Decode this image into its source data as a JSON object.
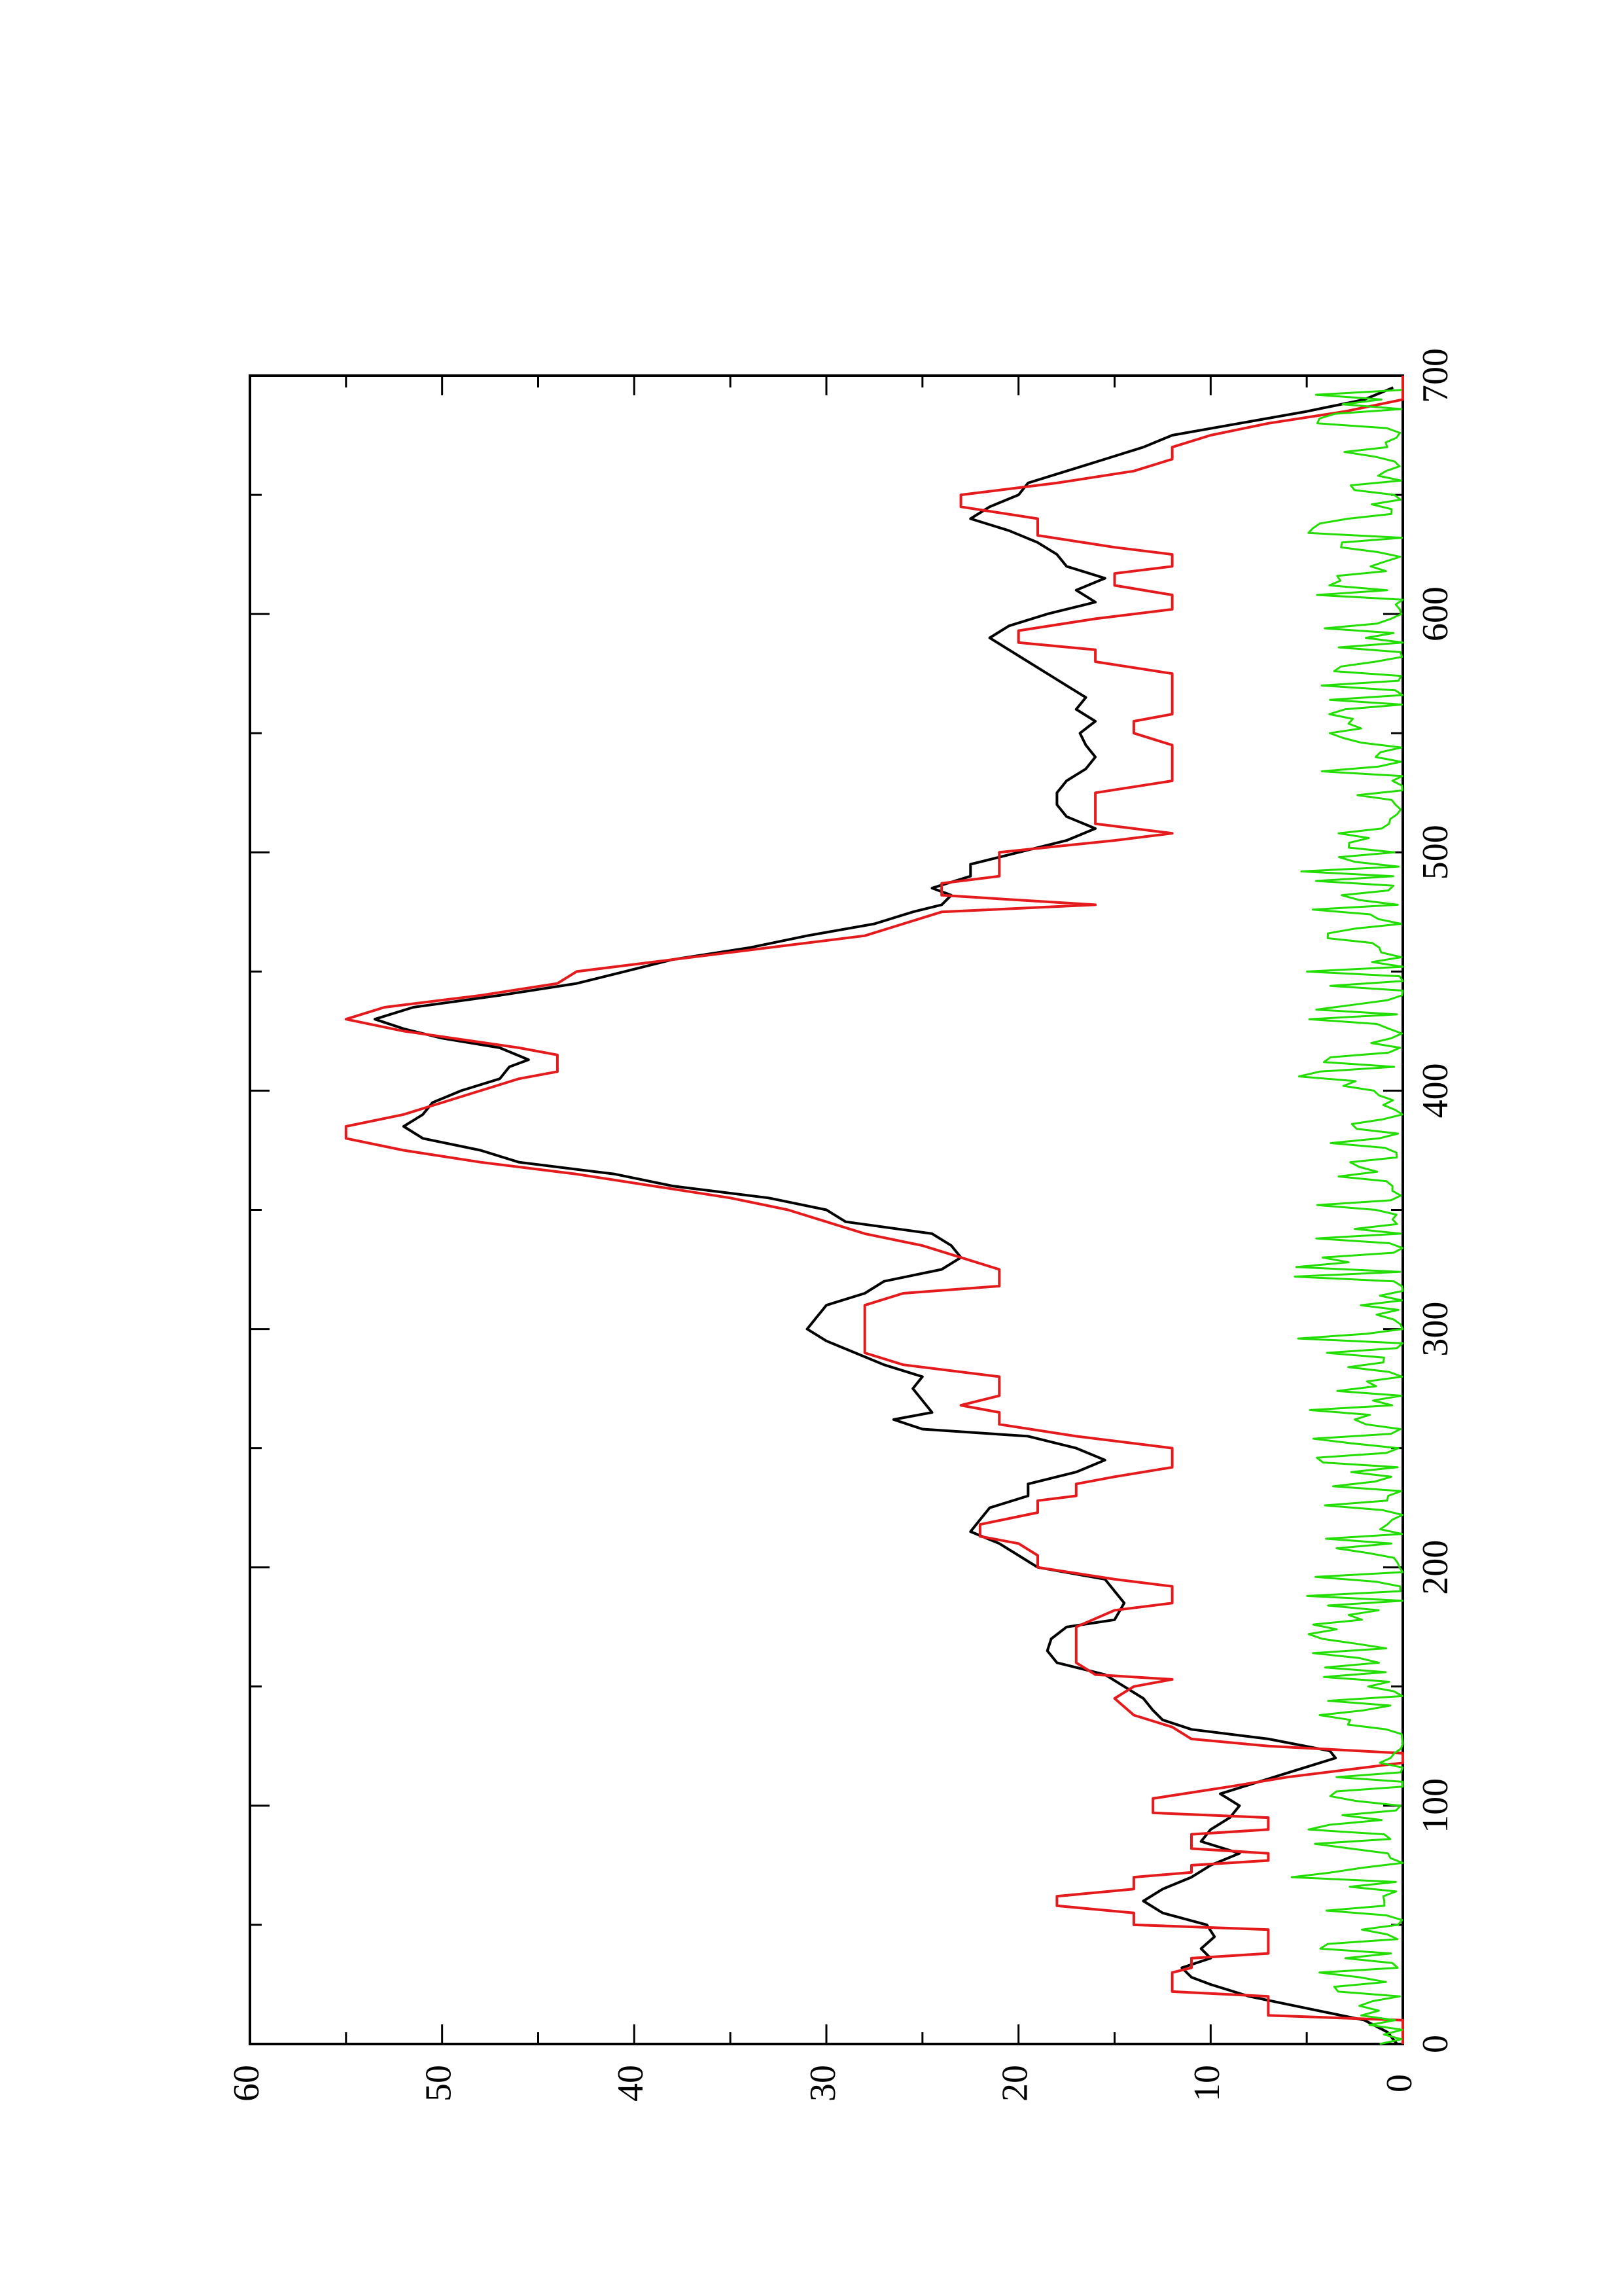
{
  "chart_data": {
    "type": "line",
    "orientation": "rotated 90 degrees counter-clockwise (x axis runs bottom-to-top, y axis runs right-to-left)",
    "title": "",
    "xlabel": "",
    "ylabel": "",
    "xlim": [
      0,
      700
    ],
    "ylim": [
      0,
      60
    ],
    "x_ticks": [
      "0",
      "100",
      "200",
      "300",
      "400",
      "500",
      "600",
      "700"
    ],
    "y_ticks": [
      "0",
      "10",
      "20",
      "30",
      "40",
      "50",
      "60"
    ],
    "grid": false,
    "legend": "none",
    "series": [
      {
        "color": "#000000",
        "style": "smooth",
        "points": [
          [
            0,
            0.3
          ],
          [
            5,
            0.8
          ],
          [
            10,
            2
          ],
          [
            15,
            5
          ],
          [
            20,
            8
          ],
          [
            25,
            10
          ],
          [
            28,
            11
          ],
          [
            32,
            11.5
          ],
          [
            36,
            10
          ],
          [
            40,
            10.5
          ],
          [
            45,
            9.8
          ],
          [
            50,
            10.2
          ],
          [
            55,
            12.5
          ],
          [
            60,
            13.5
          ],
          [
            65,
            12.5
          ],
          [
            70,
            11
          ],
          [
            75,
            10
          ],
          [
            80,
            8.5
          ],
          [
            85,
            10.5
          ],
          [
            90,
            10
          ],
          [
            95,
            9
          ],
          [
            100,
            8.5
          ],
          [
            105,
            9.5
          ],
          [
            110,
            7.5
          ],
          [
            115,
            5.5
          ],
          [
            120,
            3.5
          ],
          [
            123,
            3.8
          ],
          [
            128,
            7
          ],
          [
            132,
            11
          ],
          [
            136,
            12.5
          ],
          [
            140,
            13
          ],
          [
            145,
            13.5
          ],
          [
            150,
            14.5
          ],
          [
            155,
            15.5
          ],
          [
            160,
            18
          ],
          [
            165,
            18.5
          ],
          [
            170,
            18.3
          ],
          [
            175,
            17.5
          ],
          [
            178,
            15
          ],
          [
            185,
            14.5
          ],
          [
            195,
            15.5
          ],
          [
            200,
            19
          ],
          [
            205,
            20
          ],
          [
            210,
            21
          ],
          [
            215,
            22.5
          ],
          [
            220,
            22
          ],
          [
            225,
            21.5
          ],
          [
            230,
            19.5
          ],
          [
            235,
            19.5
          ],
          [
            240,
            17
          ],
          [
            245,
            15.5
          ],
          [
            250,
            17
          ],
          [
            255,
            19.5
          ],
          [
            258,
            25
          ],
          [
            262,
            26.5
          ],
          [
            265,
            24.5
          ],
          [
            270,
            25
          ],
          [
            275,
            25.5
          ],
          [
            280,
            25
          ],
          [
            285,
            27
          ],
          [
            290,
            28.5
          ],
          [
            295,
            30
          ],
          [
            300,
            31
          ],
          [
            305,
            30.5
          ],
          [
            310,
            30
          ],
          [
            315,
            28
          ],
          [
            320,
            27
          ],
          [
            325,
            24
          ],
          [
            330,
            23
          ],
          [
            335,
            23.5
          ],
          [
            340,
            24.5
          ],
          [
            345,
            29
          ],
          [
            350,
            30
          ],
          [
            355,
            33
          ],
          [
            360,
            38
          ],
          [
            365,
            41
          ],
          [
            370,
            46
          ],
          [
            375,
            48
          ],
          [
            380,
            51
          ],
          [
            385,
            52
          ],
          [
            390,
            51
          ],
          [
            395,
            50.5
          ],
          [
            400,
            49
          ],
          [
            405,
            47
          ],
          [
            410,
            46.5
          ],
          [
            413,
            45.5
          ],
          [
            418,
            47
          ],
          [
            422,
            50
          ],
          [
            426,
            52
          ],
          [
            430,
            53.5
          ],
          [
            435,
            51.5
          ],
          [
            440,
            47
          ],
          [
            445,
            43
          ],
          [
            450,
            40.5
          ],
          [
            455,
            38
          ],
          [
            460,
            34
          ],
          [
            465,
            31
          ],
          [
            470,
            27.5
          ],
          [
            475,
            25.5
          ],
          [
            478,
            24
          ],
          [
            482,
            23.5
          ],
          [
            485,
            24.5
          ],
          [
            490,
            22.5
          ],
          [
            495,
            22.5
          ],
          [
            500,
            20
          ],
          [
            505,
            17.5
          ],
          [
            510,
            16
          ],
          [
            515,
            17.5
          ],
          [
            520,
            18
          ],
          [
            525,
            18
          ],
          [
            530,
            17.5
          ],
          [
            535,
            16.5
          ],
          [
            540,
            16
          ],
          [
            545,
            16.5
          ],
          [
            550,
            16.8
          ],
          [
            555,
            16
          ],
          [
            560,
            17
          ],
          [
            565,
            16.5
          ],
          [
            570,
            17.5
          ],
          [
            575,
            18.5
          ],
          [
            580,
            19.5
          ],
          [
            585,
            20.5
          ],
          [
            590,
            21.5
          ],
          [
            595,
            20.5
          ],
          [
            600,
            18.5
          ],
          [
            605,
            16
          ],
          [
            610,
            17
          ],
          [
            615,
            15.5
          ],
          [
            620,
            17.5
          ],
          [
            625,
            18
          ],
          [
            630,
            19
          ],
          [
            635,
            20.5
          ],
          [
            640,
            22.5
          ],
          [
            645,
            21.5
          ],
          [
            650,
            20
          ],
          [
            655,
            19.5
          ],
          [
            660,
            17.5
          ],
          [
            665,
            15.5
          ],
          [
            670,
            13.5
          ],
          [
            675,
            12
          ],
          [
            680,
            8.5
          ],
          [
            685,
            5
          ],
          [
            690,
            2
          ],
          [
            695,
            0.5
          ]
        ]
      },
      {
        "color": "#e41a1c",
        "style": "step",
        "points": [
          [
            0,
            0
          ],
          [
            10,
            0
          ],
          [
            12,
            7
          ],
          [
            20,
            7
          ],
          [
            22,
            12
          ],
          [
            30,
            12
          ],
          [
            32,
            11
          ],
          [
            36,
            11
          ],
          [
            38,
            7
          ],
          [
            48,
            7
          ],
          [
            50,
            14
          ],
          [
            55,
            14
          ],
          [
            58,
            18
          ],
          [
            62,
            18
          ],
          [
            65,
            14
          ],
          [
            70,
            14
          ],
          [
            72,
            11
          ],
          [
            75,
            11
          ],
          [
            77,
            7
          ],
          [
            80,
            7
          ],
          [
            82,
            11
          ],
          [
            88,
            11
          ],
          [
            90,
            7
          ],
          [
            95,
            7
          ],
          [
            97,
            13
          ],
          [
            103,
            13
          ],
          [
            108,
            9
          ],
          [
            112,
            6
          ],
          [
            118,
            0
          ],
          [
            122,
            0
          ],
          [
            125,
            7
          ],
          [
            128,
            11
          ],
          [
            133,
            12
          ],
          [
            138,
            14
          ],
          [
            145,
            15
          ],
          [
            150,
            14
          ],
          [
            153,
            12
          ],
          [
            155,
            16
          ],
          [
            160,
            17
          ],
          [
            170,
            17
          ],
          [
            175,
            17
          ],
          [
            182,
            15
          ],
          [
            185,
            12
          ],
          [
            192,
            12
          ],
          [
            195,
            15
          ],
          [
            200,
            19
          ],
          [
            205,
            19
          ],
          [
            210,
            20
          ],
          [
            213,
            22
          ],
          [
            218,
            22
          ],
          [
            223,
            19
          ],
          [
            228,
            19
          ],
          [
            230,
            17
          ],
          [
            235,
            17
          ],
          [
            238,
            15
          ],
          [
            242,
            12
          ],
          [
            250,
            12
          ],
          [
            255,
            17
          ],
          [
            260,
            21
          ],
          [
            265,
            21
          ],
          [
            268,
            23
          ],
          [
            272,
            21
          ],
          [
            280,
            21
          ],
          [
            285,
            26
          ],
          [
            290,
            28
          ],
          [
            300,
            28
          ],
          [
            310,
            28
          ],
          [
            315,
            26
          ],
          [
            318,
            21
          ],
          [
            325,
            21
          ],
          [
            330,
            23
          ],
          [
            335,
            25
          ],
          [
            340,
            28
          ],
          [
            345,
            30
          ],
          [
            350,
            32
          ],
          [
            355,
            35
          ],
          [
            360,
            39
          ],
          [
            365,
            43
          ],
          [
            370,
            48
          ],
          [
            375,
            52
          ],
          [
            380,
            55
          ],
          [
            385,
            55
          ],
          [
            390,
            52
          ],
          [
            395,
            50
          ],
          [
            400,
            48
          ],
          [
            405,
            46
          ],
          [
            408,
            44
          ],
          [
            415,
            44
          ],
          [
            418,
            46
          ],
          [
            425,
            52
          ],
          [
            430,
            55
          ],
          [
            435,
            53
          ],
          [
            440,
            48
          ],
          [
            445,
            44
          ],
          [
            450,
            43
          ],
          [
            455,
            38
          ],
          [
            460,
            33
          ],
          [
            465,
            28
          ],
          [
            470,
            26
          ],
          [
            475,
            24
          ],
          [
            478,
            16
          ],
          [
            482,
            24
          ],
          [
            487,
            24
          ],
          [
            490,
            21
          ],
          [
            500,
            21
          ],
          [
            505,
            15
          ],
          [
            508,
            12
          ],
          [
            512,
            16
          ],
          [
            520,
            16
          ],
          [
            525,
            16
          ],
          [
            530,
            12
          ],
          [
            545,
            12
          ],
          [
            550,
            14
          ],
          [
            555,
            14
          ],
          [
            558,
            12
          ],
          [
            575,
            12
          ],
          [
            580,
            16
          ],
          [
            585,
            16
          ],
          [
            588,
            20
          ],
          [
            593,
            20
          ],
          [
            598,
            16
          ],
          [
            602,
            12
          ],
          [
            608,
            12
          ],
          [
            612,
            15
          ],
          [
            617,
            15
          ],
          [
            620,
            12
          ],
          [
            625,
            12
          ],
          [
            628,
            15
          ],
          [
            633,
            19
          ],
          [
            640,
            19
          ],
          [
            645,
            23
          ],
          [
            650,
            23
          ],
          [
            655,
            18
          ],
          [
            660,
            14
          ],
          [
            665,
            12
          ],
          [
            670,
            12
          ],
          [
            675,
            10
          ],
          [
            680,
            7
          ],
          [
            685,
            3
          ],
          [
            690,
            0
          ],
          [
            700,
            0
          ]
        ]
      },
      {
        "color": "#22dd00",
        "style": "noise",
        "y_range": [
          0,
          5
        ],
        "points": []
      }
    ]
  }
}
